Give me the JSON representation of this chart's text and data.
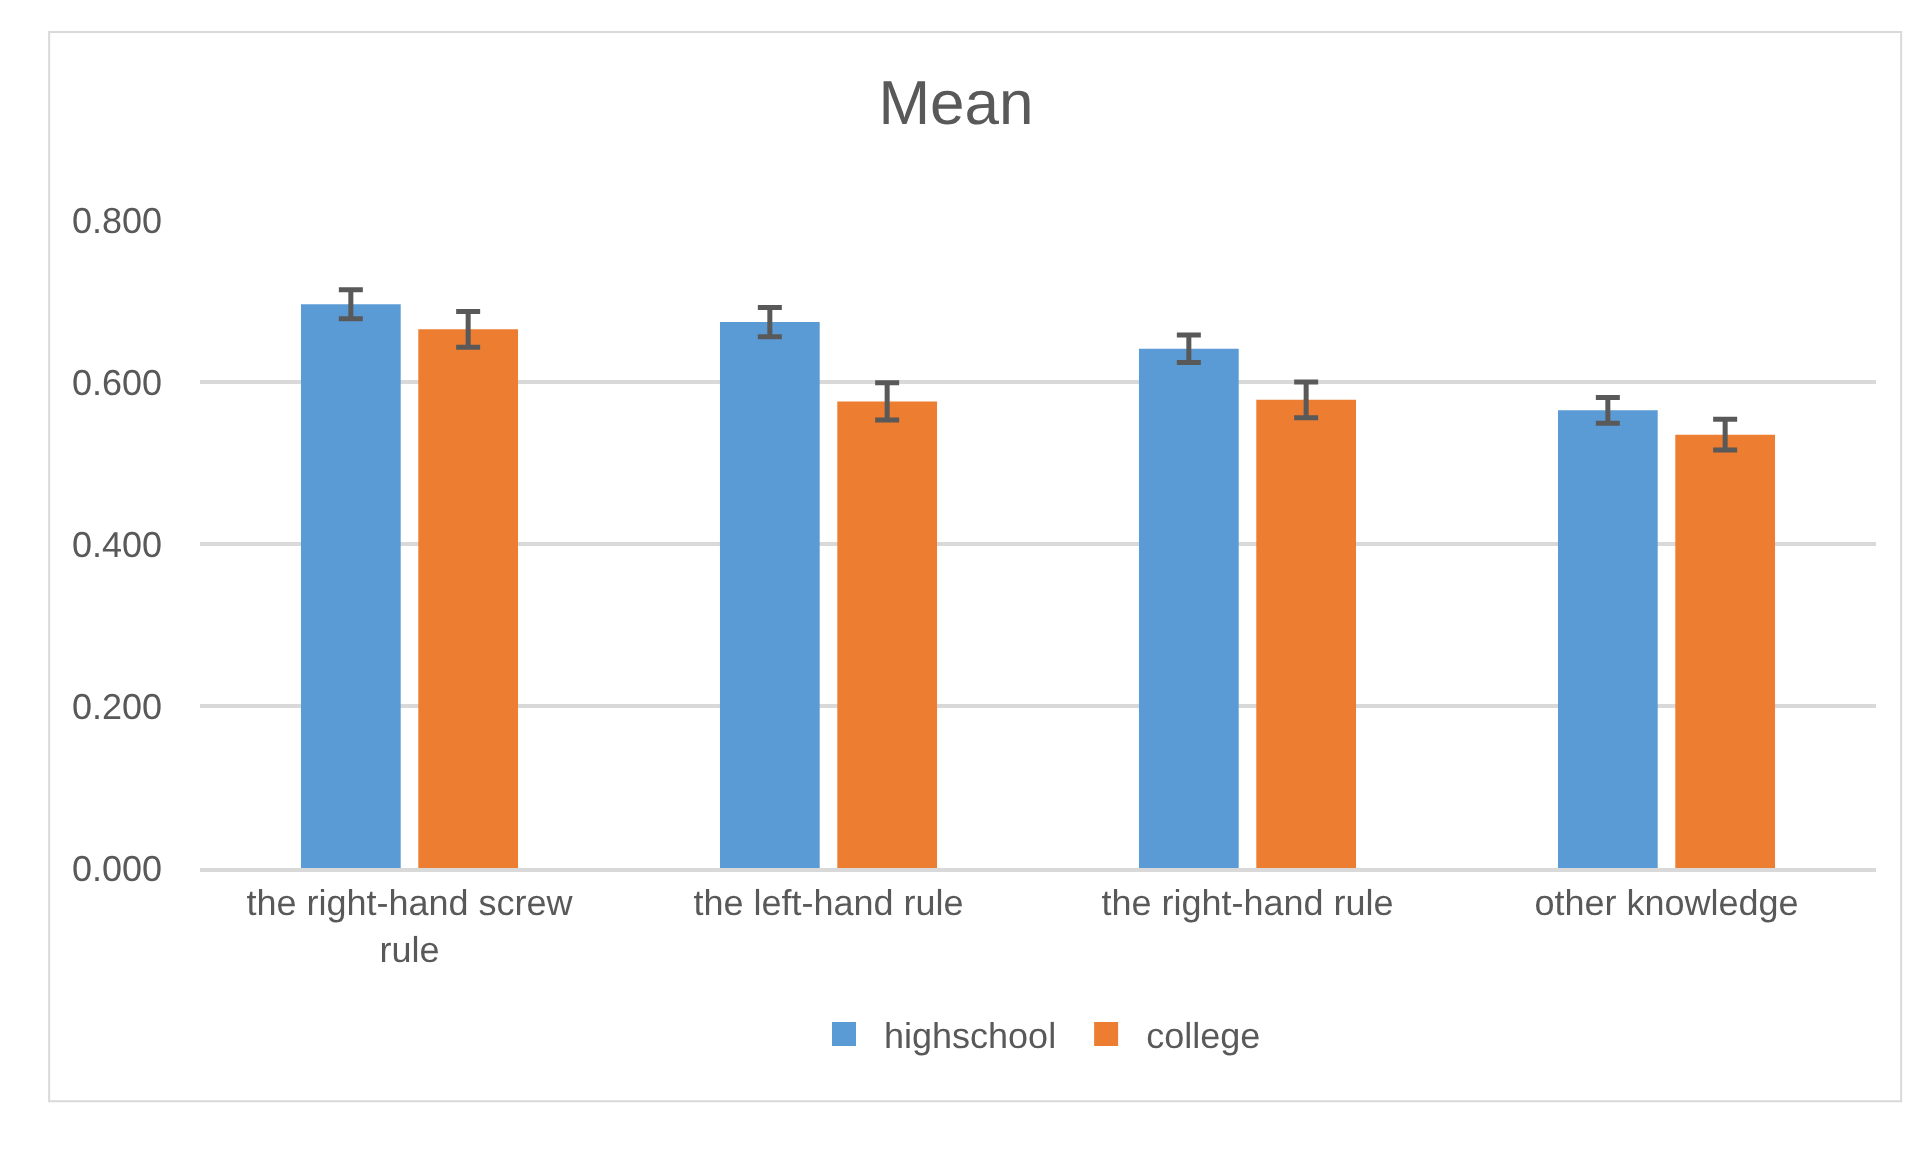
{
  "chart_data": {
    "type": "bar",
    "title": "Mean",
    "categories": [
      "the right-hand screw rule",
      "the left-hand rule",
      "the right-hand rule",
      "other knowledge"
    ],
    "series": [
      {
        "name": "highschool",
        "color": "#5b9bd5",
        "values": [
          0.696,
          0.674,
          0.641,
          0.565
        ],
        "errors": [
          0.018,
          0.018,
          0.017,
          0.016
        ]
      },
      {
        "name": "college",
        "color": "#ed7d31",
        "values": [
          0.665,
          0.576,
          0.578,
          0.535
        ],
        "errors": [
          0.022,
          0.023,
          0.022,
          0.019
        ]
      }
    ],
    "ylim": [
      0,
      0.8
    ],
    "yticks": [
      {
        "value": 0,
        "label": "0.000"
      },
      {
        "value": 0.2,
        "label": "0.200"
      },
      {
        "value": 0.4,
        "label": "0.400"
      },
      {
        "value": 0.6,
        "label": "0.600"
      },
      {
        "value": 0.8,
        "label": "0.800"
      }
    ],
    "grid": "y",
    "legend": "bottom"
  }
}
